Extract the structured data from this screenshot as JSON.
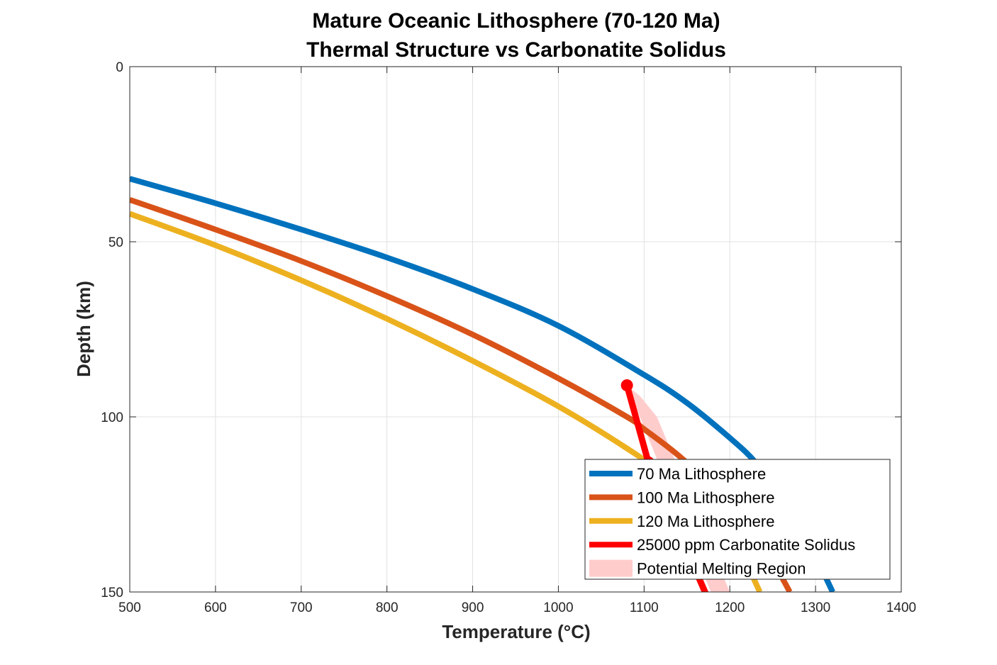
{
  "chart_data": {
    "type": "line",
    "title": [
      "Mature Oceanic Lithosphere (70-120 Ma)",
      "Thermal Structure vs Carbonatite Solidus"
    ],
    "xlabel": "Temperature (°C)",
    "ylabel": "Depth (km)",
    "xlim": [
      500,
      1400
    ],
    "ylim": [
      0,
      150
    ],
    "y_reversed": true,
    "xticks": [
      500,
      600,
      700,
      800,
      900,
      1000,
      1100,
      1200,
      1300,
      1400
    ],
    "yticks": [
      0,
      50,
      100,
      150
    ],
    "grid": true,
    "legend_position": "bottom-right",
    "series": [
      {
        "name": "70 Ma Lithosphere",
        "color": "#0072BD",
        "points": [
          [
            500,
            32
          ],
          [
            600,
            39
          ],
          [
            700,
            46.5
          ],
          [
            800,
            54.5
          ],
          [
            900,
            63.5
          ],
          [
            1000,
            74
          ],
          [
            1100,
            88
          ],
          [
            1150,
            96
          ],
          [
            1200,
            106
          ],
          [
            1230,
            113
          ],
          [
            1260,
            123
          ],
          [
            1290,
            135
          ],
          [
            1320,
            150
          ]
        ]
      },
      {
        "name": "100 Ma Lithosphere",
        "color": "#D95319",
        "points": [
          [
            500,
            38
          ],
          [
            600,
            46.5
          ],
          [
            700,
            55.5
          ],
          [
            800,
            65.5
          ],
          [
            900,
            76.5
          ],
          [
            1000,
            89
          ],
          [
            1080,
            100
          ],
          [
            1100,
            103.5
          ],
          [
            1140,
            111
          ],
          [
            1180,
            120
          ],
          [
            1210,
            128
          ],
          [
            1240,
            137
          ],
          [
            1270,
            150
          ]
        ]
      },
      {
        "name": "120 Ma Lithosphere",
        "color": "#EDB120",
        "points": [
          [
            500,
            42
          ],
          [
            600,
            51
          ],
          [
            700,
            61
          ],
          [
            800,
            72
          ],
          [
            900,
            84
          ],
          [
            1000,
            97
          ],
          [
            1080,
            109
          ],
          [
            1120,
            116
          ],
          [
            1160,
            124
          ],
          [
            1190,
            132
          ],
          [
            1215,
            140
          ],
          [
            1235,
            150
          ]
        ]
      },
      {
        "name": "25000 ppm Carbonatite Solidus",
        "color": "#FF0000",
        "points": [
          [
            1080,
            91
          ],
          [
            1105,
            113
          ],
          [
            1180,
            155
          ]
        ],
        "markers": [
          [
            1080,
            91
          ],
          [
            1105,
            113
          ]
        ]
      }
    ],
    "fill_region": {
      "name": "Potential Melting Region",
      "color": "#FFCCCC",
      "points": [
        [
          1080,
          91
        ],
        [
          1095,
          94
        ],
        [
          1115,
          100
        ],
        [
          1200,
          150
        ],
        [
          1178,
          150
        ]
      ]
    }
  }
}
